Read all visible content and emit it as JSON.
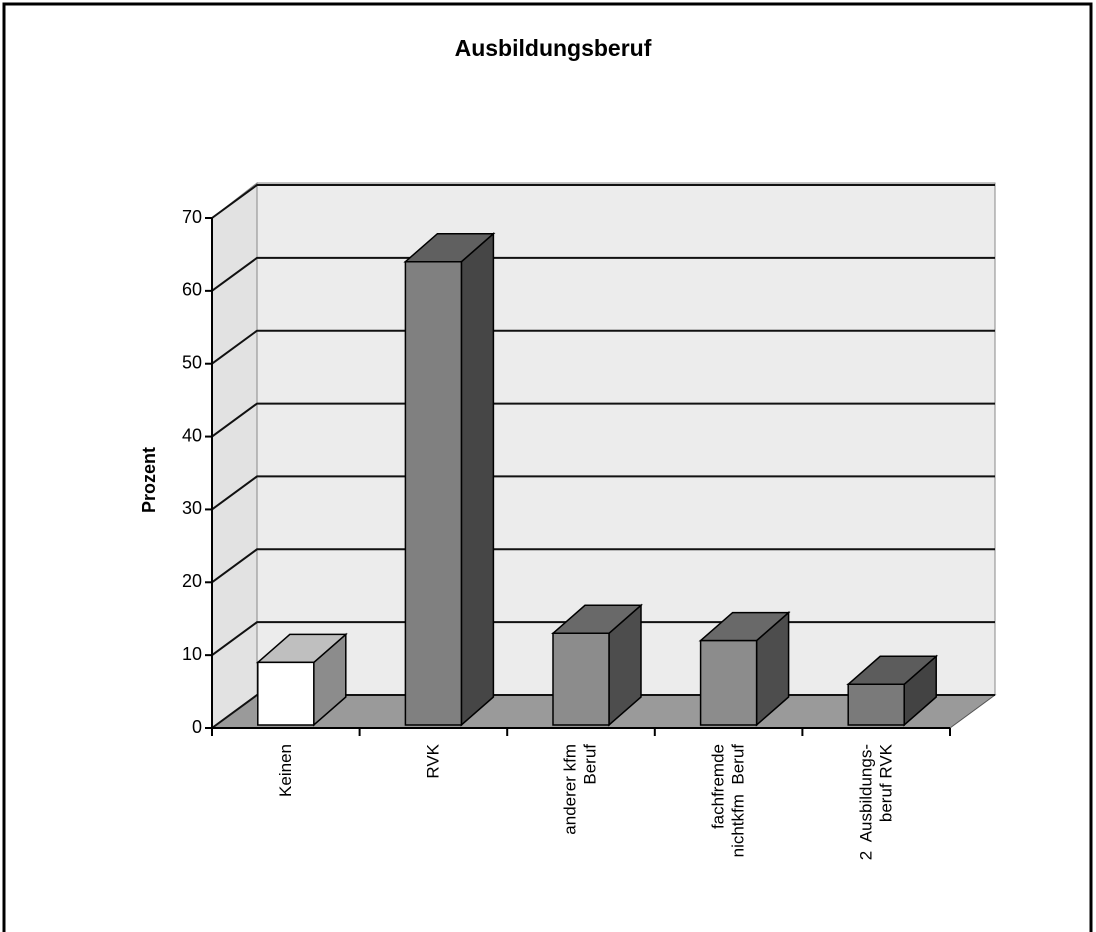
{
  "chart_data": {
    "type": "bar3d",
    "title": "Ausbildungsberuf",
    "ylabel": "Prozent",
    "categories": [
      "Keinen",
      "RVK",
      "anderer kfm\nBeruf",
      "fachfremde\nnichtkfm  Beruf",
      "2  Ausbildungs-\nberuf RVK"
    ],
    "values": [
      9,
      64,
      13,
      12,
      6
    ],
    "colors": [
      "#ffffff",
      "#808080",
      "#8c8c8c",
      "#8c8c8c",
      "#7a7a7a"
    ],
    "ylim": [
      0,
      70
    ],
    "yticks": [
      0,
      10,
      20,
      30,
      40,
      50,
      60,
      70
    ],
    "grid": true
  }
}
